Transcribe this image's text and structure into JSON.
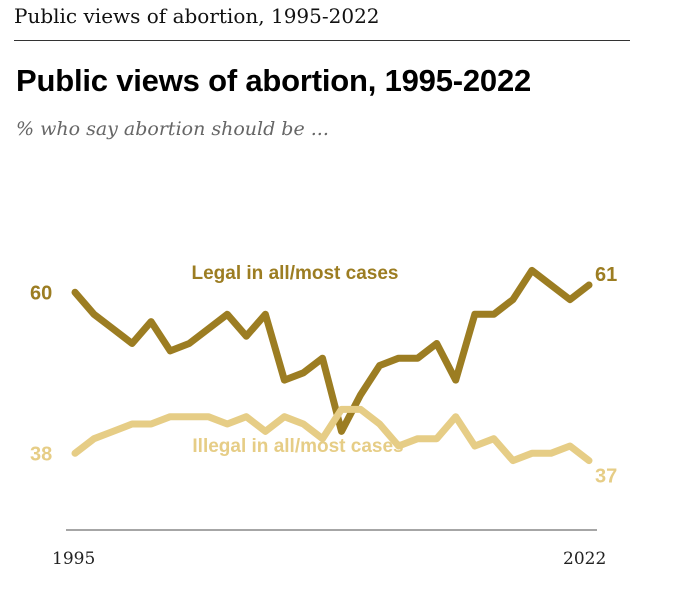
{
  "header": {
    "text": "Public views of abortion, 1995-2022"
  },
  "title": "Public views of abortion, 1995-2022",
  "subtitle": "% who say abortion should be ...",
  "colors": {
    "legal": "#9c7d22",
    "illegal": "#e6cd86",
    "axis": "#888888"
  },
  "chart_data": {
    "type": "line",
    "title": "Public views of abortion, 1995-2022",
    "subtitle": "% who say abortion should be ...",
    "xlabel": "",
    "ylabel": "",
    "x": [
      1995,
      1996,
      1997,
      1998,
      1999,
      2000,
      2001,
      2002,
      2003,
      2004,
      2005,
      2006,
      2007,
      2008,
      2009,
      2010,
      2011,
      2012,
      2013,
      2014,
      2015,
      2016,
      2017,
      2018,
      2019,
      2020,
      2021,
      2022
    ],
    "xticks": [
      "1995",
      "2022"
    ],
    "ylim": [
      20,
      80
    ],
    "series": [
      {
        "name": "Legal in all/most cases",
        "values": [
          60,
          57,
          55,
          53,
          56,
          52,
          53,
          55,
          57,
          54,
          57,
          48,
          49,
          51,
          41,
          46,
          50,
          51,
          51,
          53,
          48,
          57,
          57,
          59,
          63,
          61,
          59,
          61
        ],
        "start_label": "60",
        "end_label": "61"
      },
      {
        "name": "Illegal in all/most cases",
        "values": [
          38,
          40,
          41,
          42,
          42,
          43,
          43,
          43,
          42,
          43,
          41,
          43,
          42,
          40,
          44,
          44,
          42,
          39,
          40,
          40,
          43,
          39,
          40,
          37,
          38,
          38,
          39,
          37
        ],
        "start_label": "38",
        "end_label": "37"
      }
    ]
  }
}
